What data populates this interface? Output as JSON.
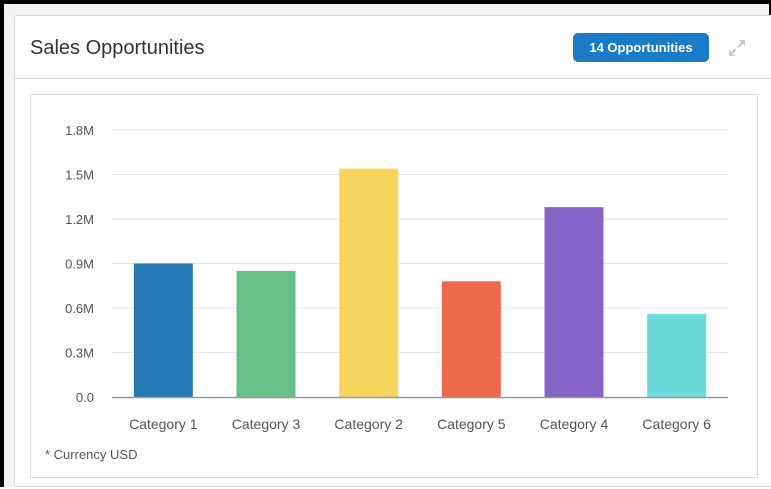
{
  "widget": {
    "title": "Sales Opportunities",
    "badge_label": "14 Opportunities",
    "expand_icon": "expand-icon",
    "footnote": "* Currency USD"
  },
  "colors": {
    "badge": "#1a7cc7",
    "bars": [
      "#2479b2",
      "#66c087",
      "#f8d45c",
      "#ec6a4b",
      "#8663c7",
      "#6ddbdc"
    ],
    "gridline": "#e6e6e6",
    "baseline": "#999999"
  },
  "chart_data": {
    "type": "bar",
    "categories": [
      "Category 1",
      "Category 3",
      "Category 2",
      "Category 5",
      "Category 4",
      "Category 6"
    ],
    "values": [
      900000,
      850000,
      1540000,
      780000,
      1280000,
      560000
    ],
    "yticks": [
      "0.0",
      "0.3M",
      "0.6M",
      "0.9M",
      "1.2M",
      "1.5M",
      "1.8M"
    ],
    "ytick_values": [
      0,
      300000,
      600000,
      900000,
      1200000,
      1500000,
      1800000
    ],
    "ylim": [
      0,
      1800000
    ],
    "grid": true,
    "legend": "none"
  }
}
